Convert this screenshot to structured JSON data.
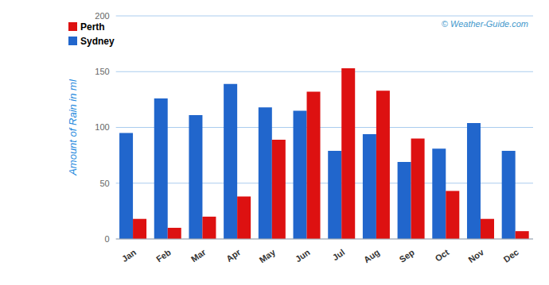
{
  "chart_data": {
    "type": "bar",
    "categories": [
      "Jan",
      "Feb",
      "Mar",
      "Apr",
      "May",
      "Jun",
      "Jul",
      "Aug",
      "Sep",
      "Oct",
      "Nov",
      "Dec"
    ],
    "series": [
      {
        "name": "Sydney",
        "color": "#2166CC",
        "values": [
          95,
          126,
          111,
          139,
          118,
          115,
          79,
          94,
          69,
          81,
          104,
          79
        ]
      },
      {
        "name": "Perth",
        "color": "#DD1111",
        "values": [
          18,
          10,
          20,
          38,
          89,
          132,
          153,
          133,
          90,
          43,
          18,
          7
        ]
      }
    ],
    "ylabel": "Amount of Rain in ml",
    "annotation": "© Weather-Guide.com",
    "ylim": [
      0,
      200
    ],
    "yticks": [
      0,
      50,
      100,
      150,
      200
    ],
    "grid": true,
    "legend": "upper left"
  }
}
